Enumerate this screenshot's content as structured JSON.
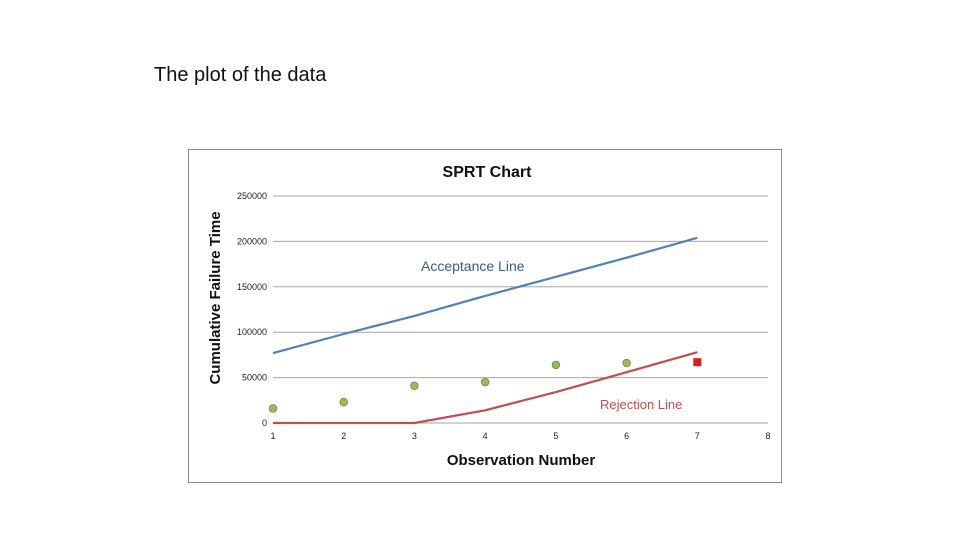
{
  "slide": {
    "heading": "The plot of the data"
  },
  "chart_data": {
    "type": "line",
    "title": "SPRT Chart",
    "xlabel": "Observation Number",
    "ylabel": "Cumulative Failure Time",
    "xlim": [
      1,
      8
    ],
    "ylim": [
      0,
      250000
    ],
    "x_ticks": [
      "1",
      "2",
      "3",
      "4",
      "5",
      "6",
      "7",
      "8"
    ],
    "y_ticks": [
      "0",
      "50000",
      "100000",
      "150000",
      "200000",
      "250000"
    ],
    "grid": true,
    "series": [
      {
        "name": "Acceptance Line",
        "kind": "line",
        "color": "#4f81bd",
        "points": [
          [
            1,
            77000
          ],
          [
            2,
            98000
          ],
          [
            3,
            118000
          ],
          [
            4,
            140000
          ],
          [
            5,
            161000
          ],
          [
            6,
            182000
          ],
          [
            7,
            204000
          ]
        ]
      },
      {
        "name": "Rejection Line",
        "kind": "line",
        "color": "#c0504d",
        "points": [
          [
            1,
            0
          ],
          [
            2,
            0
          ],
          [
            3,
            0
          ],
          [
            4,
            14000
          ],
          [
            5,
            34000
          ],
          [
            6,
            56000
          ],
          [
            7,
            78000
          ]
        ]
      },
      {
        "kind": "scatter",
        "color": "#9bbb59",
        "points": [
          [
            1,
            16000
          ],
          [
            2,
            23000
          ],
          [
            3,
            41000
          ],
          [
            4,
            45000
          ],
          [
            5,
            64000
          ],
          [
            6,
            66000
          ]
        ]
      },
      {
        "kind": "marker",
        "color": "#e31a1c",
        "points": [
          [
            7,
            67000
          ]
        ]
      }
    ]
  }
}
